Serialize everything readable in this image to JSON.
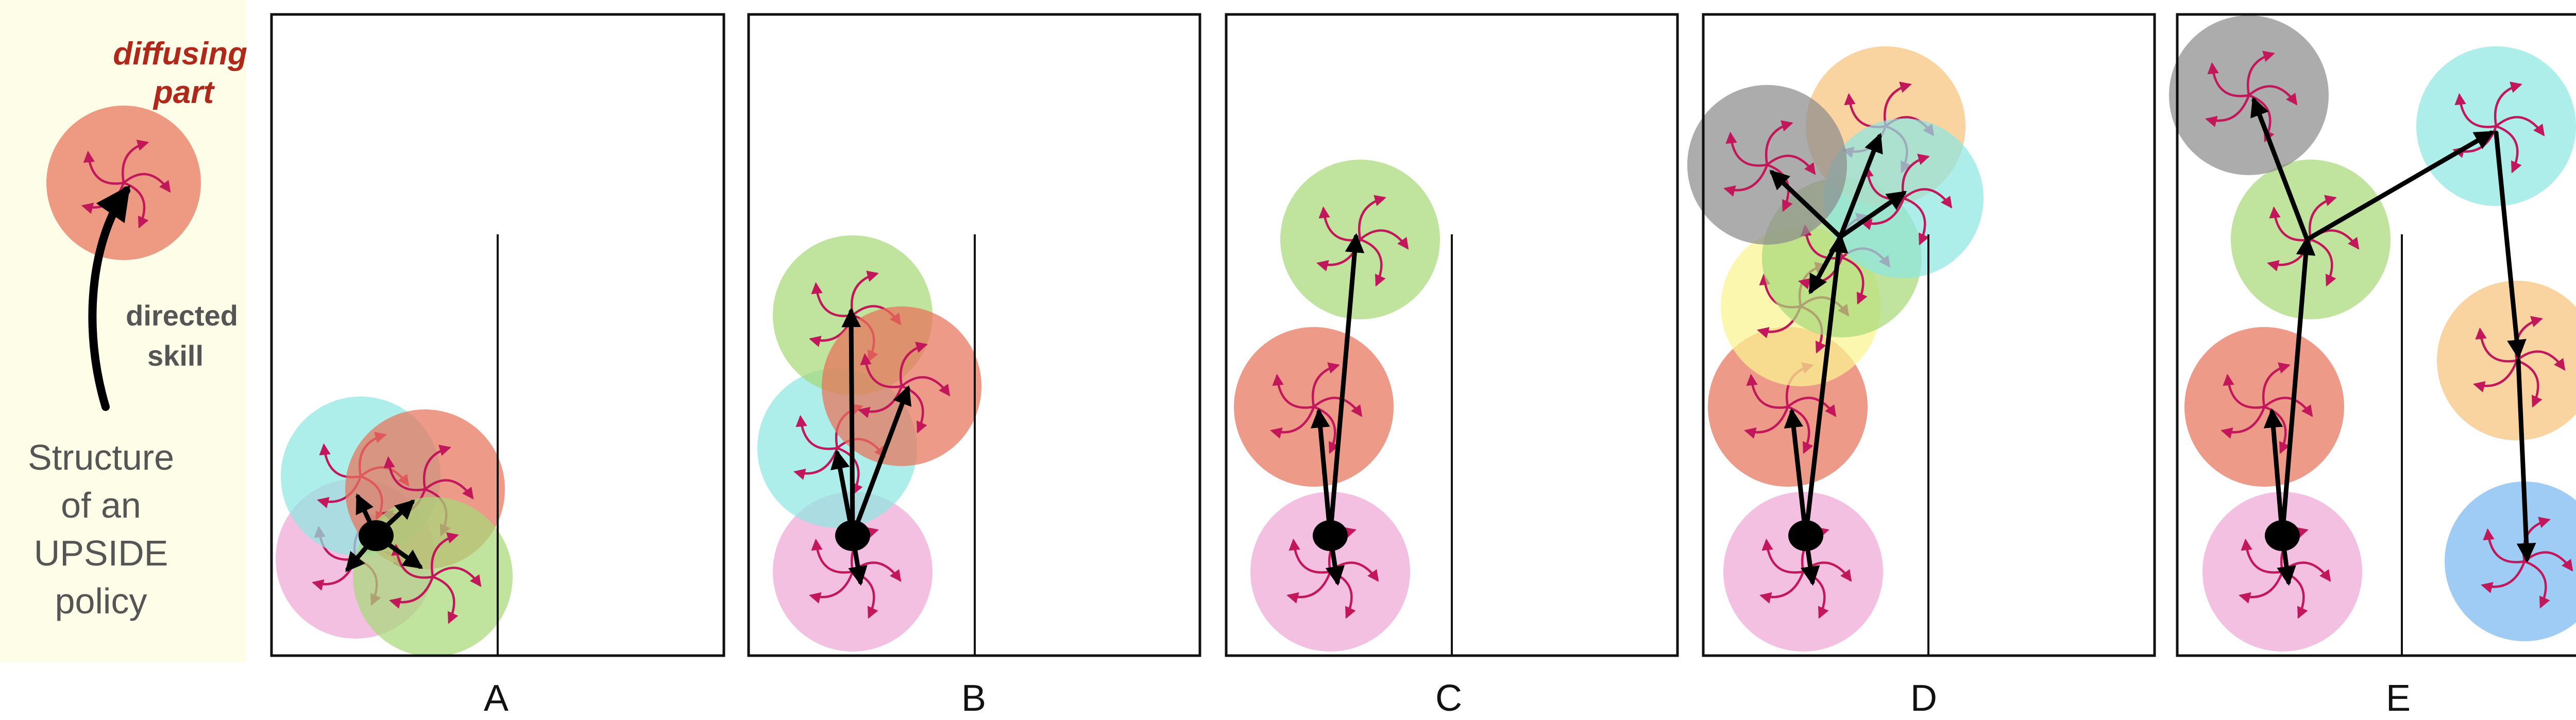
{
  "legend": {
    "diffusing_line1": "diffusing",
    "diffusing_line2": "part",
    "directed_line1": "directed",
    "directed_line2": "skill",
    "structure_lines": [
      "Structure",
      "of an",
      "UPSIDE",
      "policy"
    ]
  },
  "panels": [
    {
      "label": "A"
    },
    {
      "label": "B"
    },
    {
      "label": "C"
    },
    {
      "label": "D"
    },
    {
      "label": "E"
    }
  ],
  "colors": {
    "pink": "#f0a8d6",
    "green": "#a8d878",
    "salmon": "#e8735a",
    "cyan": "#8de6e2",
    "orange": "#f6c27c",
    "grey": "#8c8c8c",
    "yellow": "#fbf490",
    "blue": "#79b8f0",
    "arrow": "#c2185b"
  }
}
